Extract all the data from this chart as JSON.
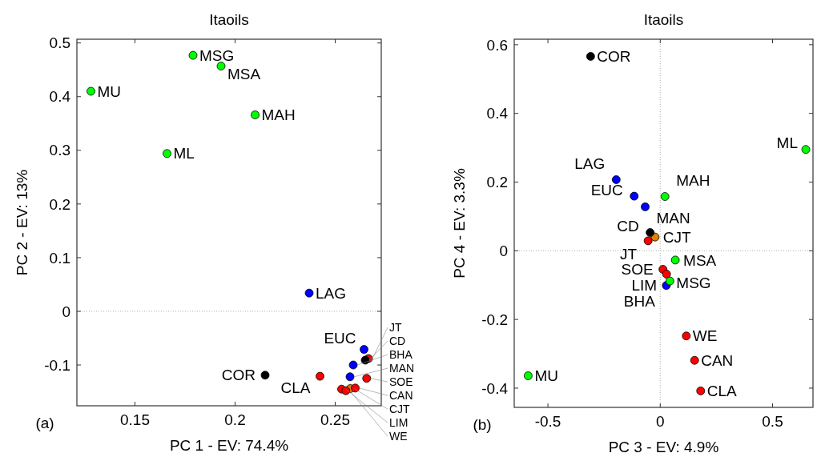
{
  "chart_data": [
    {
      "type": "scatter",
      "title": "Itaoils",
      "xlabel": "PC 1 - EV: 74.4%",
      "ylabel": "PC 2 - EV: 13%",
      "xlim": [
        0.121,
        0.273
      ],
      "ylim": [
        -0.176,
        0.507
      ],
      "xticks": [
        0.15,
        0.2,
        0.25
      ],
      "yticks": [
        -0.1,
        0,
        0.1,
        0.2,
        0.3,
        0.4,
        0.5
      ],
      "marker": "circle",
      "grid": false,
      "ref_lines": [
        {
          "axis": "y",
          "value": 0,
          "color": "#999999",
          "line_style": "dotted"
        }
      ],
      "series": [
        {
          "color": "#00ff00",
          "x": [
            0.179,
            0.193,
            0.128,
            0.21,
            0.166
          ],
          "values": [
            0.477,
            0.457,
            0.41,
            0.366,
            0.294
          ]
        },
        {
          "color": "#0000ff",
          "x": [
            0.237,
            0.2644,
            0.259,
            0.2574
          ],
          "values": [
            0.034,
            -0.071,
            -0.1,
            -0.122
          ]
        },
        {
          "color": "#000000",
          "x": [
            0.215,
            0.265
          ],
          "values": [
            -0.119,
            -0.091
          ]
        },
        {
          "color": "#ff0000",
          "x": [
            0.2424,
            0.2666,
            0.2657,
            0.2532,
            0.2553,
            0.26
          ],
          "values": [
            -0.121,
            -0.088,
            -0.125,
            -0.145,
            -0.148,
            -0.143
          ]
        },
        {
          "color": "#e08000",
          "x": [
            0.2575
          ],
          "values": [
            -0.144
          ]
        }
      ],
      "annotations": [
        {
          "text": "MSG",
          "x": 0.179,
          "y": 0.477
        },
        {
          "text": "MSA",
          "x": 0.193,
          "y": 0.457
        },
        {
          "text": "MU",
          "x": 0.128,
          "y": 0.41
        },
        {
          "text": "MAH",
          "x": 0.21,
          "y": 0.366
        },
        {
          "text": "ML",
          "x": 0.166,
          "y": 0.294
        },
        {
          "text": "LAG",
          "x": 0.237,
          "y": 0.034
        },
        {
          "text": "EUC",
          "x": 0.2644,
          "y": -0.071
        },
        {
          "text": "BHA",
          "x": 0.259,
          "y": -0.1
        },
        {
          "text": "MAN",
          "x": 0.2574,
          "y": -0.122
        },
        {
          "text": "COR",
          "x": 0.215,
          "y": -0.119
        },
        {
          "text": "CD",
          "x": 0.265,
          "y": -0.091
        },
        {
          "text": "CLA",
          "x": 0.2424,
          "y": -0.121
        },
        {
          "text": "JT",
          "x": 0.2666,
          "y": -0.088
        },
        {
          "text": "SOE",
          "x": 0.2657,
          "y": -0.125
        },
        {
          "text": "LIM",
          "x": 0.2532,
          "y": -0.145
        },
        {
          "text": "WE",
          "x": 0.2553,
          "y": -0.148
        },
        {
          "text": "CAN",
          "x": 0.26,
          "y": -0.143
        },
        {
          "text": "CJT",
          "x": 0.2575,
          "y": -0.144
        },
        "(a)"
      ]
    },
    {
      "type": "scatter",
      "title": "Itaoils",
      "xlabel": "PC 3 - EV: 4.9%",
      "ylabel": "PC 4 - EV: 3.3%",
      "xlim": [
        -0.65,
        0.68
      ],
      "ylim": [
        -0.456,
        0.616
      ],
      "xticks": [
        -0.5,
        0,
        0.5
      ],
      "yticks": [
        -0.4,
        -0.2,
        0,
        0.2,
        0.4,
        0.6
      ],
      "marker": "circle",
      "grid": false,
      "ref_lines": [
        {
          "axis": "y",
          "value": 0,
          "color": "#999999",
          "line_style": "dotted"
        },
        {
          "axis": "x",
          "value": 0,
          "color": "#999999",
          "line_style": "dotted"
        }
      ],
      "series": [
        {
          "color": "#00ff00",
          "x": [
            -0.588,
            0.648,
            0.021,
            0.067,
            0.043
          ],
          "values": [
            -0.364,
            0.295,
            0.158,
            -0.027,
            -0.088
          ]
        },
        {
          "color": "#0000ff",
          "x": [
            -0.196,
            -0.116,
            -0.067,
            0.027
          ],
          "values": [
            0.207,
            0.159,
            0.128,
            -0.101
          ]
        },
        {
          "color": "#000000",
          "x": [
            -0.31,
            -0.045
          ],
          "values": [
            0.566,
            0.053
          ]
        },
        {
          "color": "#ff0000",
          "x": [
            -0.054,
            0.012,
            0.028,
            0.116,
            0.153,
            0.18
          ],
          "values": [
            0.029,
            -0.054,
            -0.068,
            -0.248,
            -0.319,
            -0.408
          ]
        },
        {
          "color": "#e08000",
          "x": [
            -0.023
          ],
          "values": [
            0.04
          ]
        }
      ],
      "annotations": [
        {
          "text": "MU",
          "x": -0.588,
          "y": -0.364
        },
        {
          "text": "ML",
          "x": 0.648,
          "y": 0.295
        },
        {
          "text": "MAH",
          "x": 0.021,
          "y": 0.158
        },
        {
          "text": "MSA",
          "x": 0.067,
          "y": -0.027
        },
        {
          "text": "MSG",
          "x": 0.043,
          "y": -0.088
        },
        {
          "text": "LAG",
          "x": -0.196,
          "y": 0.207
        },
        {
          "text": "EUC",
          "x": -0.116,
          "y": 0.159
        },
        {
          "text": "MAN",
          "x": -0.067,
          "y": 0.128
        },
        {
          "text": "BHA",
          "x": 0.027,
          "y": -0.101
        },
        {
          "text": "COR",
          "x": -0.31,
          "y": 0.566
        },
        {
          "text": "CD",
          "x": -0.045,
          "y": 0.053
        },
        {
          "text": "JT",
          "x": -0.054,
          "y": 0.029
        },
        {
          "text": "SOE",
          "x": 0.012,
          "y": -0.054
        },
        {
          "text": "LIM",
          "x": 0.028,
          "y": -0.068
        },
        {
          "text": "WE",
          "x": 0.116,
          "y": -0.248
        },
        {
          "text": "CAN",
          "x": 0.153,
          "y": -0.319
        },
        {
          "text": "CLA",
          "x": 0.18,
          "y": -0.408
        },
        {
          "text": "CJT",
          "x": -0.023,
          "y": 0.04
        },
        "(b)"
      ]
    }
  ]
}
